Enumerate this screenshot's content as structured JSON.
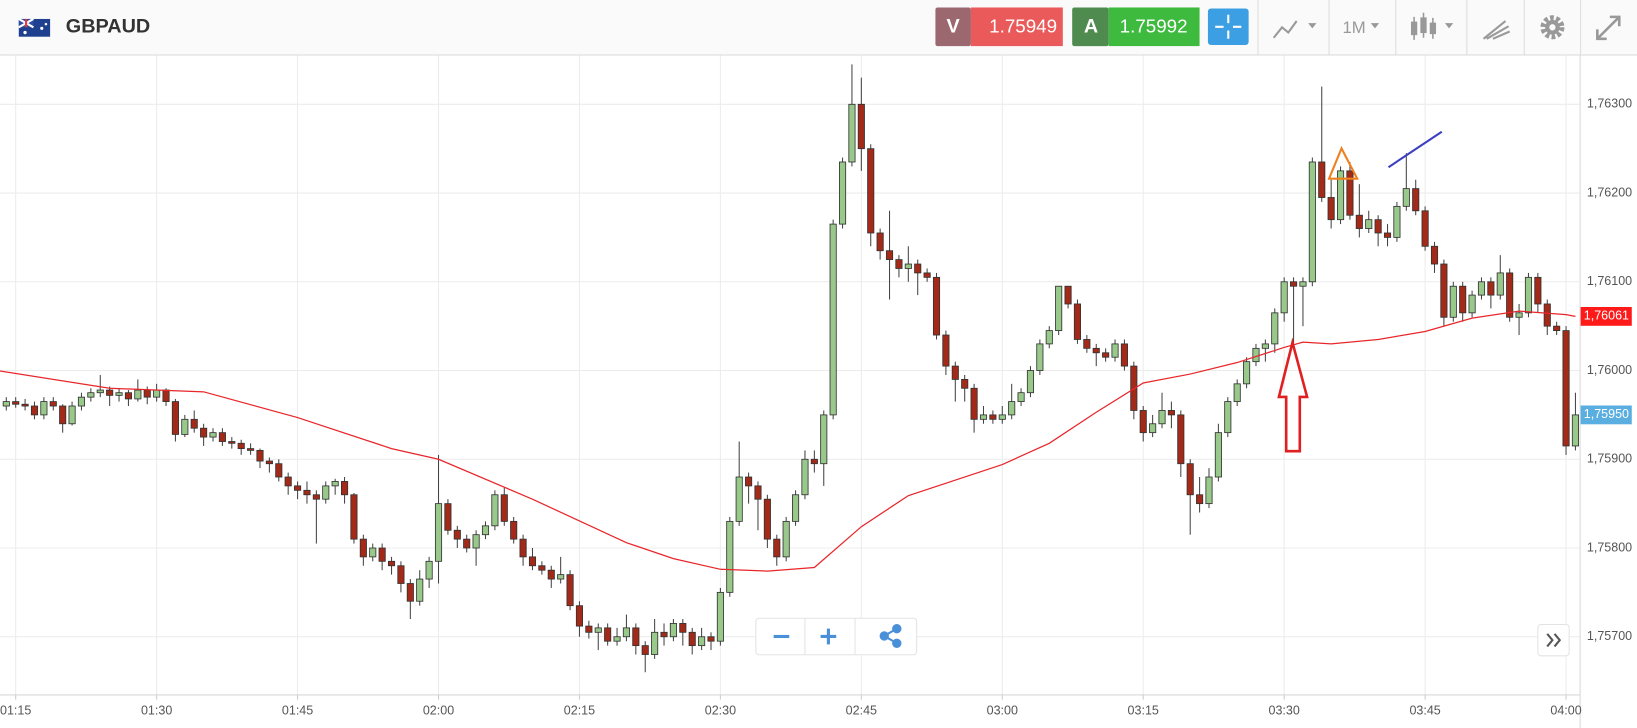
{
  "header": {
    "symbol": "GBPAUD",
    "bid_label": "V",
    "bid": "1.75949",
    "ask_label": "A",
    "ask": "1.75992",
    "timeframe": "1M"
  },
  "chart_data": {
    "type": "candlestick",
    "x": [
      74,
      75,
      76,
      77,
      78,
      79,
      80,
      81,
      82,
      83,
      84,
      85,
      86,
      87,
      88,
      89,
      90,
      91,
      92,
      93,
      94,
      95,
      96,
      97,
      98,
      99,
      100,
      101,
      102,
      103,
      104,
      105,
      106,
      107,
      108,
      109,
      110,
      111,
      112,
      113,
      114,
      115,
      116,
      117,
      118,
      119,
      120,
      121,
      122,
      123,
      124,
      125,
      126,
      127,
      128,
      129,
      130,
      131,
      132,
      133,
      134,
      135,
      136,
      137,
      138,
      139,
      140,
      141,
      142,
      143,
      144,
      145,
      146,
      147,
      148,
      149,
      150,
      151,
      152,
      153,
      154,
      155,
      156,
      157,
      158,
      159,
      160,
      161,
      162,
      163,
      164,
      165,
      166,
      167,
      168,
      169,
      170,
      171,
      172,
      173,
      174,
      175,
      176,
      177,
      178,
      179,
      180,
      181,
      182,
      183,
      184,
      185,
      186,
      187,
      188,
      189,
      190,
      191,
      192,
      193,
      194,
      195,
      196,
      197,
      198,
      199,
      200,
      201,
      202,
      203,
      204,
      205,
      206,
      207,
      208,
      209,
      210,
      211,
      212,
      213,
      214,
      215,
      216,
      217,
      218,
      219,
      220,
      221,
      222,
      223,
      224,
      225,
      226,
      227,
      228,
      229,
      230,
      231,
      232,
      233,
      234,
      235,
      236,
      237,
      238,
      239,
      240,
      241
    ],
    "open": [
      1.7596,
      1.75965,
      1.75962,
      1.7596,
      1.7595,
      1.75965,
      1.7596,
      1.7594,
      1.7596,
      1.7597,
      1.75975,
      1.75978,
      1.75972,
      1.75975,
      1.75968,
      1.75978,
      1.7597,
      1.75978,
      1.75965,
      1.75928,
      1.75945,
      1.75935,
      1.75925,
      1.7593,
      1.7592,
      1.75918,
      1.75912,
      1.7591,
      1.75898,
      1.75895,
      1.7588,
      1.7587,
      1.75865,
      1.7586,
      1.75855,
      1.7587,
      1.75875,
      1.7586,
      1.7581,
      1.7579,
      1.758,
      1.75785,
      1.7578,
      1.7576,
      1.7574,
      1.75765,
      1.75785,
      1.7585,
      1.7582,
      1.7581,
      1.758,
      1.75815,
      1.75825,
      1.7586,
      1.7583,
      1.7581,
      1.7579,
      1.7578,
      1.75775,
      1.75765,
      1.7577,
      1.75735,
      1.75712,
      1.75705,
      1.7571,
      1.75695,
      1.757,
      1.7571,
      1.7569,
      1.7568,
      1.75705,
      1.757,
      1.75715,
      1.75705,
      1.7569,
      1.757,
      1.75695,
      1.7575,
      1.7583,
      1.7588,
      1.7587,
      1.75855,
      1.7581,
      1.7579,
      1.7583,
      1.7586,
      1.759,
      1.75895,
      1.7595,
      1.76165,
      1.76235,
      1.763,
      1.7625,
      1.76155,
      1.76135,
      1.76125,
      1.76115,
      1.7612,
      1.7611,
      1.76105,
      1.7604,
      1.76005,
      1.7599,
      1.7598,
      1.75945,
      1.7595,
      1.75945,
      1.7595,
      1.75965,
      1.75975,
      1.76,
      1.7603,
      1.76045,
      1.76095,
      1.76075,
      1.76035,
      1.76025,
      1.7602,
      1.76015,
      1.7603,
      1.76005,
      1.75955,
      1.7593,
      1.7594,
      1.75955,
      1.7595,
      1.75895,
      1.7586,
      1.7585,
      1.7588,
      1.7593,
      1.75965,
      1.75985,
      1.7601,
      1.76025,
      1.7603,
      1.76065,
      1.761,
      1.76095,
      1.761,
      1.76235,
      1.76195,
      1.7617,
      1.76225,
      1.76175,
      1.7616,
      1.7617,
      1.76155,
      1.7615,
      1.76185,
      1.76205,
      1.7618,
      1.7614,
      1.7612,
      1.7606,
      1.76095,
      1.76065,
      1.76085,
      1.761,
      1.76085,
      1.7611,
      1.7606,
      1.76065,
      1.76105,
      1.76075,
      1.7605,
      1.76045,
      1.75915
    ],
    "high": [
      1.7597,
      1.7597,
      1.75968,
      1.75965,
      1.7597,
      1.7597,
      1.75962,
      1.75965,
      1.75975,
      1.7598,
      1.75995,
      1.75982,
      1.7598,
      1.75978,
      1.7599,
      1.75982,
      1.75985,
      1.7598,
      1.75968,
      1.7595,
      1.75955,
      1.7594,
      1.75935,
      1.75935,
      1.75925,
      1.75922,
      1.75918,
      1.75912,
      1.75902,
      1.759,
      1.75885,
      1.75875,
      1.75875,
      1.75865,
      1.75875,
      1.75878,
      1.7588,
      1.75862,
      1.75815,
      1.75805,
      1.75805,
      1.7579,
      1.75785,
      1.75765,
      1.75775,
      1.7579,
      1.75905,
      1.75855,
      1.75825,
      1.75815,
      1.7582,
      1.7583,
      1.75865,
      1.75868,
      1.75835,
      1.75815,
      1.758,
      1.75785,
      1.7578,
      1.7579,
      1.75775,
      1.7574,
      1.75718,
      1.75715,
      1.75715,
      1.7571,
      1.75725,
      1.75715,
      1.75695,
      1.7572,
      1.75715,
      1.7572,
      1.7572,
      1.7571,
      1.7571,
      1.75705,
      1.75755,
      1.75835,
      1.7592,
      1.75885,
      1.75875,
      1.7586,
      1.75815,
      1.75835,
      1.75865,
      1.7591,
      1.7591,
      1.75955,
      1.7617,
      1.7624,
      1.76345,
      1.7633,
      1.76255,
      1.7616,
      1.7618,
      1.7613,
      1.7614,
      1.76125,
      1.76115,
      1.7611,
      1.76045,
      1.7601,
      1.75995,
      1.75985,
      1.7596,
      1.75955,
      1.7596,
      1.75985,
      1.7598,
      1.76005,
      1.76035,
      1.7605,
      1.76095,
      1.76095,
      1.7608,
      1.7604,
      1.7603,
      1.76025,
      1.76035,
      1.76035,
      1.7601,
      1.7596,
      1.7595,
      1.75975,
      1.75965,
      1.75955,
      1.759,
      1.7588,
      1.7589,
      1.7594,
      1.7597,
      1.7599,
      1.76015,
      1.7603,
      1.76035,
      1.7607,
      1.76105,
      1.76105,
      1.76105,
      1.7624,
      1.7632,
      1.76215,
      1.7623,
      1.76235,
      1.7621,
      1.7618,
      1.76175,
      1.76165,
      1.7619,
      1.76245,
      1.76215,
      1.76185,
      1.76145,
      1.76125,
      1.761,
      1.761,
      1.7609,
      1.76105,
      1.76105,
      1.7613,
      1.76115,
      1.76075,
      1.7611,
      1.7611,
      1.7608,
      1.76055,
      1.7605,
      1.75975
    ],
    "low": [
      1.75955,
      1.75958,
      1.75955,
      1.75945,
      1.75945,
      1.75955,
      1.7593,
      1.75938,
      1.75955,
      1.75965,
      1.7597,
      1.7596,
      1.75965,
      1.7596,
      1.75965,
      1.75962,
      1.75965,
      1.7596,
      1.7592,
      1.75925,
      1.7593,
      1.75915,
      1.7592,
      1.75915,
      1.75912,
      1.75905,
      1.75905,
      1.7589,
      1.75885,
      1.75875,
      1.7586,
      1.75855,
      1.7585,
      1.75805,
      1.7585,
      1.7586,
      1.7585,
      1.75805,
      1.7578,
      1.75785,
      1.75775,
      1.7577,
      1.7575,
      1.7572,
      1.75735,
      1.75755,
      1.7576,
      1.75815,
      1.758,
      1.75795,
      1.7578,
      1.7581,
      1.7582,
      1.75825,
      1.75805,
      1.7578,
      1.75775,
      1.7577,
      1.75755,
      1.7576,
      1.7573,
      1.757,
      1.75698,
      1.75685,
      1.7569,
      1.7569,
      1.75695,
      1.7568,
      1.7566,
      1.75675,
      1.7569,
      1.75695,
      1.7569,
      1.7568,
      1.75685,
      1.75685,
      1.7569,
      1.75745,
      1.75825,
      1.7585,
      1.7582,
      1.758,
      1.7578,
      1.75785,
      1.75825,
      1.75855,
      1.75885,
      1.7587,
      1.75945,
      1.7616,
      1.7623,
      1.76225,
      1.7614,
      1.76125,
      1.7608,
      1.76105,
      1.761,
      1.76085,
      1.761,
      1.76035,
      1.75995,
      1.75965,
      1.75965,
      1.7593,
      1.7594,
      1.7594,
      1.7594,
      1.75945,
      1.7596,
      1.7597,
      1.75995,
      1.76025,
      1.7604,
      1.7607,
      1.7603,
      1.7602,
      1.76005,
      1.7601,
      1.7601,
      1.76,
      1.75945,
      1.7592,
      1.75925,
      1.75935,
      1.75935,
      1.7588,
      1.75815,
      1.7584,
      1.75845,
      1.75875,
      1.75925,
      1.7596,
      1.7598,
      1.76005,
      1.7601,
      1.7602,
      1.76055,
      1.7603,
      1.7605,
      1.76095,
      1.7619,
      1.7616,
      1.76165,
      1.7617,
      1.7615,
      1.76155,
      1.7614,
      1.7614,
      1.76145,
      1.7618,
      1.76175,
      1.76135,
      1.7611,
      1.7605,
      1.76055,
      1.76055,
      1.7606,
      1.7608,
      1.7607,
      1.7608,
      1.76055,
      1.7604,
      1.7606,
      1.76065,
      1.7604,
      1.7604,
      1.75905,
      1.7591
    ],
    "close": [
      1.75965,
      1.75962,
      1.7596,
      1.7595,
      1.75965,
      1.7596,
      1.7594,
      1.7596,
      1.7597,
      1.75975,
      1.75978,
      1.75972,
      1.75975,
      1.75968,
      1.75978,
      1.7597,
      1.75978,
      1.75965,
      1.75928,
      1.75945,
      1.75935,
      1.75925,
      1.7593,
      1.7592,
      1.75918,
      1.75912,
      1.7591,
      1.75898,
      1.75895,
      1.7588,
      1.7587,
      1.75865,
      1.7586,
      1.75855,
      1.7587,
      1.75875,
      1.7586,
      1.7581,
      1.7579,
      1.758,
      1.75785,
      1.7578,
      1.7576,
      1.7574,
      1.75765,
      1.75785,
      1.7585,
      1.7582,
      1.7581,
      1.758,
      1.75815,
      1.75825,
      1.7586,
      1.7583,
      1.7581,
      1.7579,
      1.7578,
      1.75775,
      1.75765,
      1.7577,
      1.75735,
      1.75712,
      1.75705,
      1.7571,
      1.75695,
      1.757,
      1.7571,
      1.7569,
      1.7568,
      1.75705,
      1.757,
      1.75715,
      1.75705,
      1.7569,
      1.757,
      1.75695,
      1.7575,
      1.7583,
      1.7588,
      1.7587,
      1.75855,
      1.7581,
      1.7579,
      1.7583,
      1.7586,
      1.759,
      1.75895,
      1.7595,
      1.76165,
      1.76235,
      1.763,
      1.7625,
      1.76155,
      1.76135,
      1.76125,
      1.76115,
      1.7612,
      1.7611,
      1.76105,
      1.7604,
      1.76005,
      1.7599,
      1.7598,
      1.75945,
      1.7595,
      1.75945,
      1.7595,
      1.75965,
      1.75975,
      1.76,
      1.7603,
      1.76045,
      1.76095,
      1.76075,
      1.76035,
      1.76025,
      1.7602,
      1.76015,
      1.7603,
      1.76005,
      1.75955,
      1.7593,
      1.7594,
      1.75955,
      1.7595,
      1.75895,
      1.7586,
      1.7585,
      1.7588,
      1.7593,
      1.75965,
      1.75985,
      1.7601,
      1.76025,
      1.7603,
      1.76065,
      1.761,
      1.76095,
      1.761,
      1.76235,
      1.76195,
      1.7617,
      1.76225,
      1.76175,
      1.7616,
      1.7617,
      1.76155,
      1.7615,
      1.76185,
      1.76205,
      1.7618,
      1.7614,
      1.7612,
      1.7606,
      1.76095,
      1.76065,
      1.76085,
      1.761,
      1.76085,
      1.7611,
      1.7606,
      1.76065,
      1.76105,
      1.76075,
      1.7605,
      1.76045,
      1.75915,
      1.7595
    ],
    "up_color": "#98c98a",
    "down_color": "#a32a18",
    "moving_average": {
      "color": "#e8262a",
      "x": [
        73,
        85,
        95,
        105,
        115,
        120,
        130,
        140,
        145,
        150,
        155,
        160,
        165,
        170,
        180,
        185,
        190,
        195,
        200,
        205,
        210,
        212,
        215,
        220,
        225,
        230,
        235,
        240,
        241
      ],
      "values": [
        1.76,
        1.7598,
        1.75976,
        1.75947,
        1.75912,
        1.759,
        1.75855,
        1.75806,
        1.75788,
        1.75776,
        1.75774,
        1.75778,
        1.75824,
        1.75859,
        1.75894,
        1.75918,
        1.75953,
        1.75986,
        1.75996,
        1.76009,
        1.76026,
        1.76032,
        1.7603,
        1.76035,
        1.76044,
        1.76059,
        1.76067,
        1.76063,
        1.76061
      ]
    },
    "price_markers": [
      {
        "value": 1.76061,
        "label": "1,76061",
        "color": "#ff1a1a"
      },
      {
        "value": 1.7595,
        "label": "1,75950",
        "color": "#5aaee0"
      }
    ],
    "xlim": [
      73.33,
      241.44
    ],
    "ylim": [
      1.75635,
      1.76355
    ],
    "xticks": [
      {
        "value": 75,
        "label": "01:15"
      },
      {
        "value": 90,
        "label": "01:30"
      },
      {
        "value": 105,
        "label": "01:45"
      },
      {
        "value": 120,
        "label": "02:00"
      },
      {
        "value": 135,
        "label": "02:15"
      },
      {
        "value": 150,
        "label": "02:30"
      },
      {
        "value": 165,
        "label": "02:45"
      },
      {
        "value": 180,
        "label": "03:00"
      },
      {
        "value": 195,
        "label": "03:15"
      },
      {
        "value": 210,
        "label": "03:30"
      },
      {
        "value": 225,
        "label": "03:45"
      },
      {
        "value": 240,
        "label": "04:00"
      }
    ],
    "yticks": [
      {
        "value": 1.757,
        "label": "1,75700"
      },
      {
        "value": 1.758,
        "label": "1,75800"
      },
      {
        "value": 1.759,
        "label": "1,75900"
      },
      {
        "value": 1.76,
        "label": "1,76000"
      },
      {
        "value": 1.761,
        "label": "1,76100"
      },
      {
        "value": 1.762,
        "label": "1,76200"
      },
      {
        "value": 1.763,
        "label": "1,76300"
      }
    ],
    "grid": true
  }
}
